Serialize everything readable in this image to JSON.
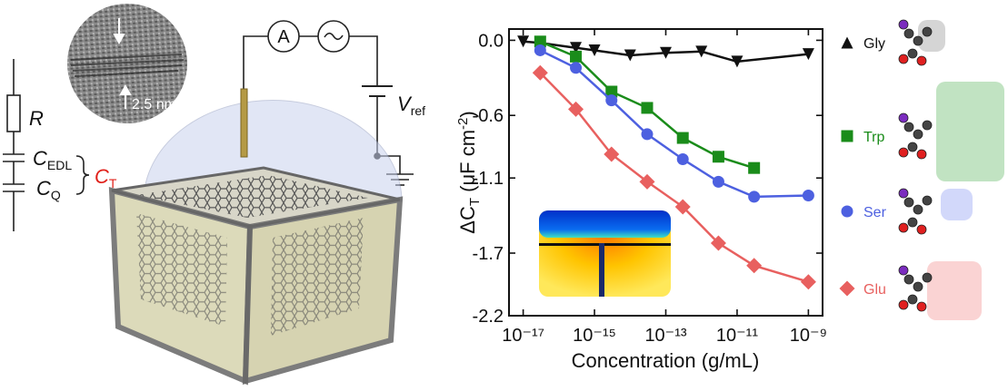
{
  "schematic": {
    "resistor": "R",
    "c_edl": {
      "main": "C",
      "sub": "EDL"
    },
    "c_q": {
      "main": "C",
      "sub": "Q"
    },
    "c_t": {
      "main": "C",
      "sub": "T"
    },
    "scale_bar": "2.5 nm",
    "ammeter": "A",
    "v_ref": {
      "main": "V",
      "sub": "ref"
    }
  },
  "chart_data": {
    "type": "line",
    "xlabel": "Concentration (g/mL)",
    "ylabel": [
      "ΔC",
      "T",
      " (μF cm",
      "-2",
      ")"
    ],
    "xscale": "log",
    "xlim": [
      4e-18,
      2.5e-09
    ],
    "ylim": [
      -2.2,
      0.09
    ],
    "xticks": [
      {
        "value": 1e-17,
        "label": "10⁻¹⁷"
      },
      {
        "value": 1e-15,
        "label": "10⁻¹⁵"
      },
      {
        "value": 1e-13,
        "label": "10⁻¹³"
      },
      {
        "value": 1e-11,
        "label": "10⁻¹¹"
      },
      {
        "value": 1e-09,
        "label": "10⁻⁹"
      }
    ],
    "yticks": [
      {
        "value": 0,
        "label": "0.0"
      },
      -0.6,
      -1.1,
      -1.7,
      -2.2
    ],
    "grid": false,
    "legend": "right",
    "series": [
      {
        "name": "Gly",
        "color": "#111111",
        "marker": "triangle",
        "x": [
          1e-17,
          3e-17,
          3e-16,
          1e-15,
          1e-14,
          1e-13,
          1e-12,
          1e-11,
          1e-09
        ],
        "values": [
          -0.01,
          -0.02,
          -0.06,
          -0.08,
          -0.12,
          -0.1,
          -0.09,
          -0.17,
          -0.11
        ]
      },
      {
        "name": "Trp",
        "color": "#1a8c1a",
        "marker": "square",
        "x": [
          3e-17,
          3e-16,
          3e-15,
          3e-14,
          3e-13,
          3e-12,
          3e-11
        ],
        "values": [
          -0.01,
          -0.13,
          -0.41,
          -0.54,
          -0.78,
          -0.93,
          -1.02
        ]
      },
      {
        "name": "Ser",
        "color": "#4d60e0",
        "marker": "circle",
        "x": [
          3e-17,
          3e-16,
          3e-15,
          3e-14,
          3e-13,
          3e-12,
          3e-11,
          1e-09
        ],
        "values": [
          -0.08,
          -0.22,
          -0.48,
          -0.75,
          -0.95,
          -1.13,
          -1.25,
          -1.24
        ]
      },
      {
        "name": "Glu",
        "color": "#e8605f",
        "marker": "diamond",
        "x": [
          3e-17,
          3e-16,
          3e-15,
          3e-14,
          3e-13,
          3e-12,
          3e-11,
          1e-09
        ],
        "values": [
          -0.26,
          -0.55,
          -0.91,
          -1.13,
          -1.33,
          -1.62,
          -1.8,
          -1.93
        ]
      }
    ]
  }
}
